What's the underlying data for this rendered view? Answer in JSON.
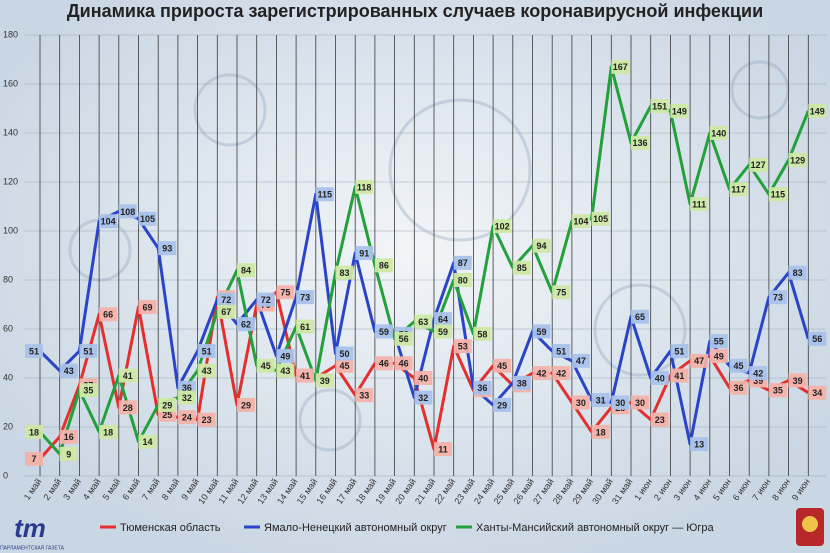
{
  "chart_data": {
    "type": "line",
    "title": "Динамика прироста зарегистрированных случаев коронавирусной инфекции",
    "categories": [
      "1 май",
      "2 май",
      "3 май",
      "4 май",
      "5 май",
      "6 май",
      "7 май",
      "8 май",
      "9 май",
      "10 май",
      "11 май",
      "12 май",
      "13 май",
      "14 май",
      "15 май",
      "16 май",
      "17 май",
      "18 май",
      "19 май",
      "20 май",
      "21 май",
      "22 май",
      "23 май",
      "24 май",
      "25 май",
      "26 май",
      "27 май",
      "28 май",
      "29 май",
      "30 май",
      "31 май",
      "1 июн",
      "2 июн",
      "3 июн",
      "4 июн",
      "5 июн",
      "6 июн",
      "7 июн",
      "8 июн",
      "9 июн"
    ],
    "series": [
      {
        "name": "Тюменская область",
        "color": "#e3302f",
        "label_color": "#f3b2aa",
        "values": [
          7,
          16,
          37,
          66,
          28,
          69,
          25,
          24,
          23,
          73,
          29,
          70,
          75,
          41,
          40,
          45,
          33,
          46,
          46,
          40,
          11,
          53,
          35,
          45,
          37,
          42,
          42,
          30,
          18,
          28,
          30,
          23,
          41,
          47,
          49,
          36,
          39,
          35,
          39,
          34
        ],
        "value_labels": [
          "7",
          "16",
          "37",
          "66",
          "28",
          "69",
          "25",
          "24",
          "23",
          "73",
          "29",
          "70",
          "75",
          "41",
          null,
          "45",
          "33",
          "46",
          "46",
          "40",
          "11",
          "53",
          "35",
          "45",
          "37",
          "42",
          "42",
          "30",
          "18",
          "28",
          "30",
          "23",
          "41",
          "47",
          "49",
          "36",
          "39",
          "35",
          "39",
          "34"
        ]
      },
      {
        "name": "Ямало-Ненецкий автономный округ",
        "color": "#2a44c8",
        "label_color": "#a8c2ea",
        "values": [
          51,
          43,
          51,
          104,
          108,
          105,
          93,
          36,
          51,
          72,
          62,
          72,
          49,
          73,
          115,
          50,
          91,
          59,
          58,
          32,
          64,
          87,
          36,
          29,
          38,
          59,
          51,
          47,
          31,
          30,
          65,
          40,
          51,
          13,
          55,
          45,
          42,
          73,
          83,
          56
        ]
      },
      {
        "name": "Ханты-Мансийский автономный округ — Югра",
        "color": "#22a03a",
        "label_color": "#cde8a4",
        "values": [
          18,
          9,
          35,
          18,
          41,
          14,
          29,
          32,
          43,
          67,
          84,
          45,
          43,
          61,
          39,
          83,
          118,
          86,
          56,
          63,
          59,
          80,
          58,
          102,
          85,
          94,
          75,
          104,
          105,
          167,
          136,
          151,
          149,
          111,
          140,
          117,
          127,
          115,
          129,
          149
        ]
      }
    ],
    "ylim": [
      0,
      180
    ],
    "yticks": [
      0,
      20,
      40,
      60,
      80,
      100,
      120,
      140,
      160,
      180
    ],
    "grid": true
  },
  "logo": {
    "mark": "tm",
    "caption": "ПАРЛАМЕНТСКАЯ ГАЗЕТА"
  }
}
